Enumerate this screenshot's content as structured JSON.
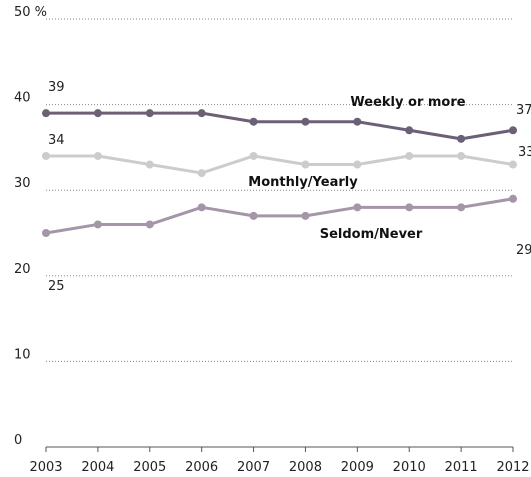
{
  "chart_data": {
    "type": "line",
    "title": "",
    "xlabel": "",
    "ylabel": "",
    "x": [
      "2003",
      "2004",
      "2005",
      "2006",
      "2007",
      "2008",
      "2009",
      "2010",
      "2011",
      "2012"
    ],
    "ylim": [
      0,
      50
    ],
    "yticks": [
      "0",
      "10",
      "20",
      "30",
      "40",
      "50 %"
    ],
    "grid": true,
    "legend": "inline-labels",
    "series": [
      {
        "name": "Weekly or more",
        "values": [
          39,
          39,
          39,
          39,
          38,
          38,
          38,
          37,
          36,
          37
        ],
        "color": "#6b6075",
        "start_label": "39",
        "end_label": "37"
      },
      {
        "name": "Monthly/Yearly",
        "values": [
          34,
          34,
          33,
          32,
          34,
          33,
          33,
          34,
          34,
          33
        ],
        "color": "#cccccc",
        "start_label": "34",
        "end_label": "33"
      },
      {
        "name": "Seldom/Never",
        "values": [
          25,
          26,
          26,
          28,
          27,
          27,
          28,
          28,
          28,
          29
        ],
        "color": "#a496a8",
        "start_label": "25",
        "end_label": "29"
      }
    ]
  }
}
